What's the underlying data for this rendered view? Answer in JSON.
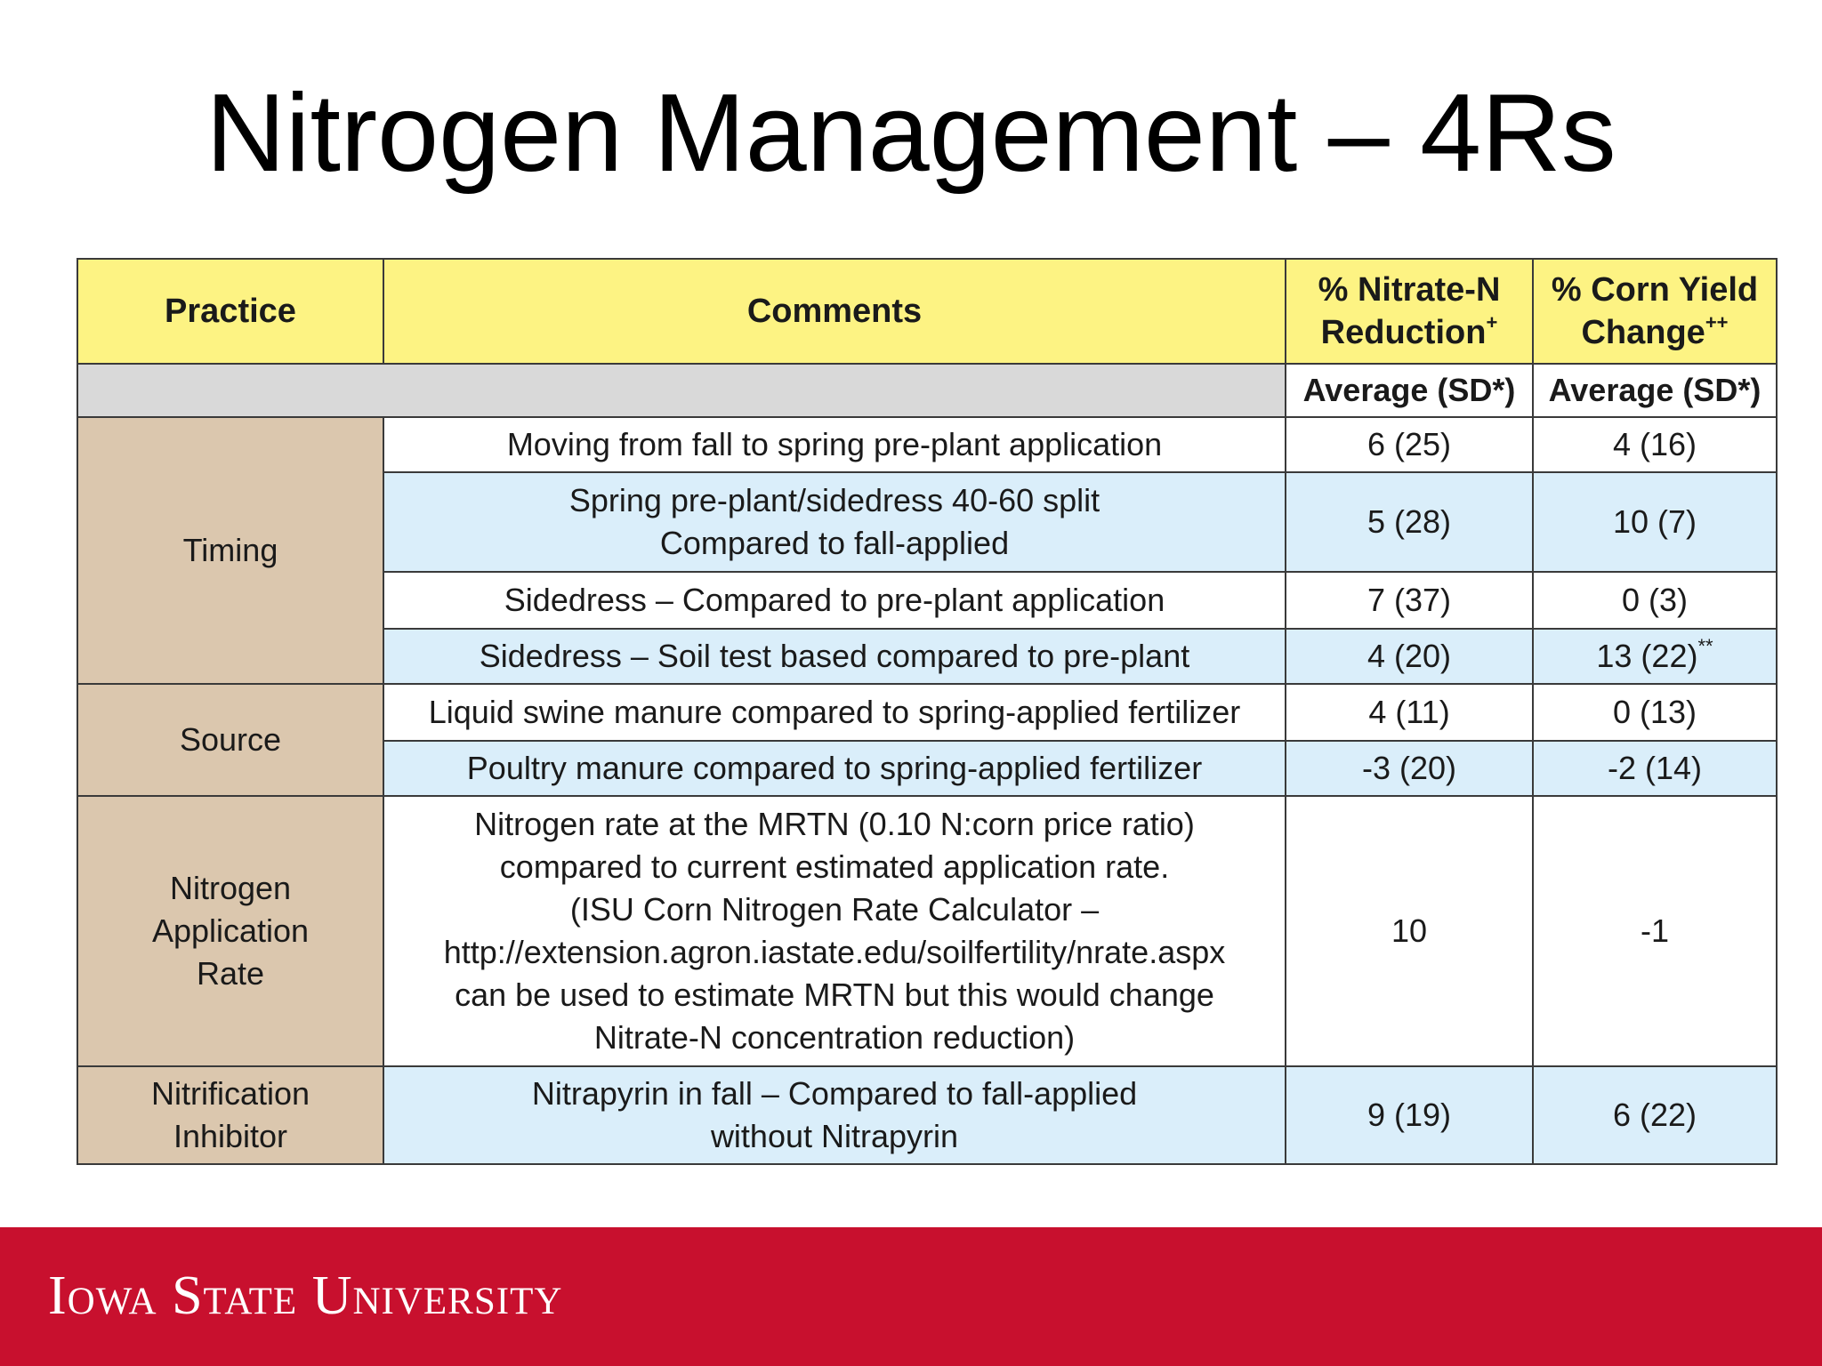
{
  "slide": {
    "title": "Nitrogen Management – 4Rs"
  },
  "table": {
    "headers": {
      "practice": "Practice",
      "comments": "Comments",
      "nitrate_line1": "% Nitrate-N",
      "nitrate_line2": "Reduction",
      "nitrate_sup": "+",
      "yield_line1": "% Corn Yield",
      "yield_line2": "Change",
      "yield_sup": "++",
      "nitrate_sub": "Average (SD*)",
      "yield_sub": "Average (SD*)"
    },
    "groups": {
      "timing": "Timing",
      "source": "Source",
      "rate_line1": "Nitrogen",
      "rate_line2": "Application",
      "rate_line3": "Rate",
      "inhibitor_line1": "Nitrification",
      "inhibitor_line2": "Inhibitor"
    },
    "rows": [
      {
        "comment": "Moving from fall to spring pre-plant application",
        "nitrate": "6 (25)",
        "yield": "4 (16)"
      },
      {
        "comment_line1": "Spring pre-plant/sidedress 40-60 split",
        "comment_line2": "Compared to fall-applied",
        "nitrate": "5 (28)",
        "yield": "10 (7)"
      },
      {
        "comment": "Sidedress – Compared to pre-plant application",
        "nitrate": "7 (37)",
        "yield": "0 (3)"
      },
      {
        "comment": "Sidedress – Soil test based compared to pre-plant",
        "nitrate": "4 (20)",
        "yield": "13 (22)",
        "yield_sup": "**"
      },
      {
        "comment": "Liquid swine manure compared to spring-applied fertilizer",
        "nitrate": "4 (11)",
        "yield": "0 (13)"
      },
      {
        "comment": "Poultry manure compared to spring-applied fertilizer",
        "nitrate": "-3 (20)",
        "yield": "-2 (14)"
      },
      {
        "comment_line1": "Nitrogen rate at the MRTN (0.10 N:corn price ratio)",
        "comment_line2": "compared to current estimated application rate.",
        "comment_line3": "(ISU Corn Nitrogen Rate Calculator –",
        "comment_line4": "http://extension.agron.iastate.edu/soilfertility/nrate.aspx",
        "comment_line5": "can be used to estimate MRTN but this would change",
        "comment_line6": "Nitrate-N concentration reduction)",
        "nitrate": "10",
        "yield": "-1"
      },
      {
        "comment_line1": "Nitrapyrin in fall – Compared to fall-applied",
        "comment_line2": "without Nitrapyrin",
        "nitrate": "9 (19)",
        "yield": "6 (22)"
      }
    ]
  },
  "footer": {
    "logo_text": "Iowa State University",
    "bar_color": "#c8102e"
  }
}
